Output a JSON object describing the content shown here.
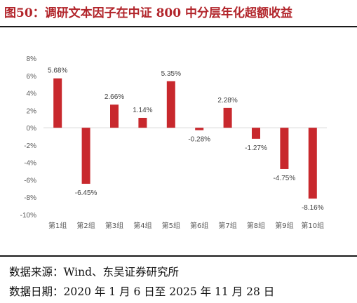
{
  "title": "图50：调研文本因子在中证 800 中分层年化超额收益",
  "source_line": "数据来源：Wind、东吴证券研究所",
  "date_line": "数据日期：2020 年 1 月 6 日至 2025 年 11 月 28 日",
  "colors": {
    "bar": "#c8282d",
    "title": "#b2252b",
    "grid": "#d9d9d9",
    "axis_text": "#595959"
  },
  "chart_data": {
    "type": "bar",
    "title": "",
    "xlabel": "",
    "ylabel": "",
    "categories": [
      "第1组",
      "第2组",
      "第3组",
      "第4组",
      "第5组",
      "第6组",
      "第7组",
      "第8组",
      "第9组",
      "第10组"
    ],
    "values": [
      5.68,
      -6.45,
      2.66,
      1.14,
      5.35,
      -0.28,
      2.28,
      -1.27,
      -4.75,
      -8.16
    ],
    "data_labels": [
      "5.68%",
      "-6.45%",
      "2.66%",
      "1.14%",
      "5.35%",
      "-0.28%",
      "2.28%",
      "-1.27%",
      "-4.75%",
      "-8.16%"
    ],
    "ylim": [
      -10,
      8
    ],
    "yticks": [
      8,
      6,
      4,
      2,
      0,
      -2,
      -4,
      -6,
      -8,
      -10
    ],
    "ytick_labels": [
      "8%",
      "6%",
      "4%",
      "2%",
      "0%",
      "-2%",
      "-4%",
      "-6%",
      "-8%",
      "-10%"
    ],
    "grid": false,
    "legend": "none"
  }
}
